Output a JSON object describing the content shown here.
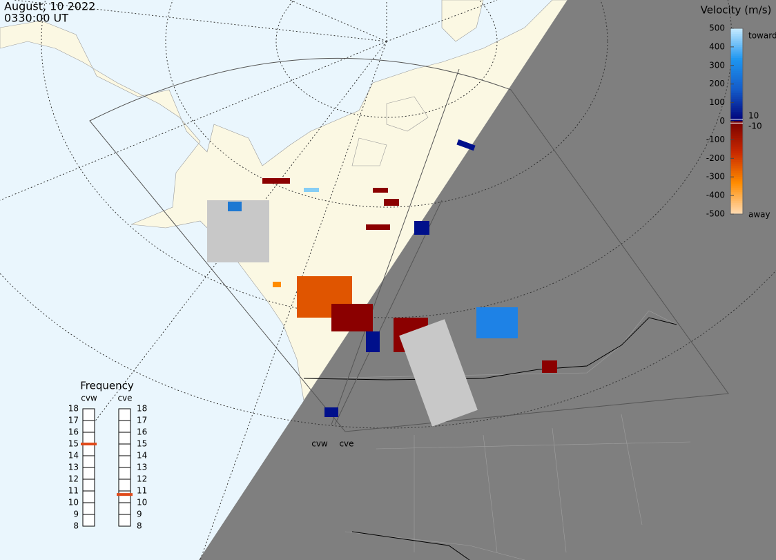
{
  "header": {
    "date": "August, 10 2022",
    "time": "0330:00 UT"
  },
  "colorbar": {
    "title": "Velocity (m/s)",
    "ticks": [
      500,
      400,
      300,
      200,
      100,
      0,
      -100,
      -200,
      -300,
      -400,
      -500
    ],
    "inner_ticks": [
      10,
      -10
    ],
    "toward": "toward",
    "away": "away"
  },
  "frequency": {
    "title": "Frequency",
    "ticks": [
      8,
      9,
      10,
      11,
      12,
      13,
      14,
      15,
      16,
      17,
      18
    ],
    "radars": [
      {
        "name": "cvw",
        "value": 15
      },
      {
        "name": "cve",
        "value": 10.7
      }
    ]
  },
  "map": {
    "radar_labels": [
      "cvw",
      "cve"
    ]
  }
}
